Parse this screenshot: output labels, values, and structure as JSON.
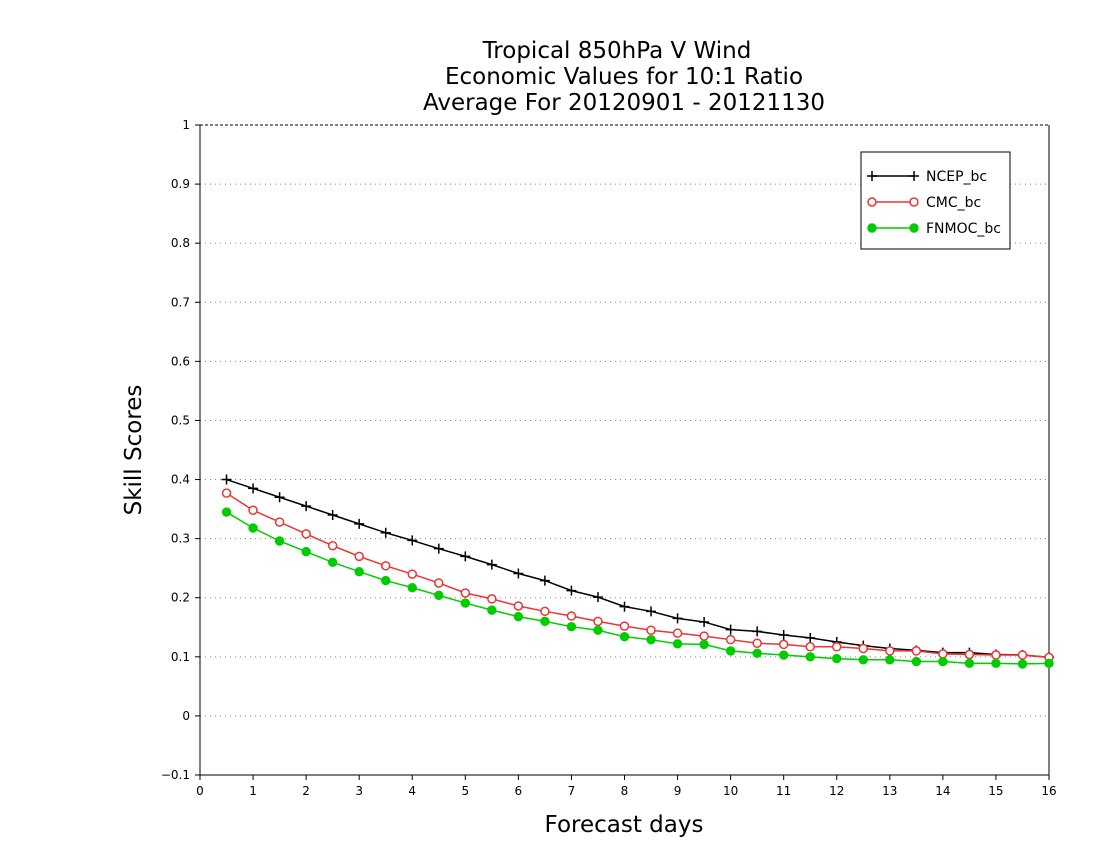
{
  "chart_data": {
    "type": "line",
    "title_lines": [
      "Tropical 850hPa V Wind",
      "Economic Values for 10:1 Ratio",
      "Average For 20120901 - 20121130"
    ],
    "xlabel": "Forecast days",
    "ylabel": "Skill Scores",
    "xlim": [
      0,
      16
    ],
    "ylim": [
      -0.1,
      1
    ],
    "xticks": [
      "0",
      "1",
      "2",
      "3",
      "4",
      "5",
      "6",
      "7",
      "8",
      "9",
      "10",
      "11",
      "12",
      "13",
      "14",
      "15",
      "16"
    ],
    "yticks": [
      "−0.1",
      "0",
      "0.1",
      "0.2",
      "0.3",
      "0.4",
      "0.5",
      "0.6",
      "0.7",
      "0.8",
      "0.9",
      "1"
    ],
    "grid": "horizontal-dotted",
    "legend_position": "top-right",
    "x": [
      0.5,
      1,
      1.5,
      2,
      2.5,
      3,
      3.5,
      4,
      4.5,
      5,
      5.5,
      6,
      6.5,
      7,
      7.5,
      8,
      8.5,
      9,
      9.5,
      10,
      10.5,
      11,
      11.5,
      12,
      12.5,
      13,
      13.5,
      14,
      14.5,
      15,
      15.5,
      16
    ],
    "series": [
      {
        "name": "NCEP_bc",
        "color": "#000000",
        "marker": "plus",
        "values": [
          0.4,
          0.385,
          0.37,
          0.355,
          0.34,
          0.325,
          0.31,
          0.297,
          0.283,
          0.27,
          0.256,
          0.241,
          0.229,
          0.212,
          0.201,
          0.185,
          0.177,
          0.165,
          0.159,
          0.146,
          0.143,
          0.137,
          0.132,
          0.125,
          0.119,
          0.114,
          0.111,
          0.107,
          0.107,
          0.104,
          0.103,
          0.099
        ]
      },
      {
        "name": "CMC_bc",
        "color": "#ee3333",
        "marker": "open-circle",
        "values": [
          0.377,
          0.348,
          0.328,
          0.308,
          0.288,
          0.27,
          0.254,
          0.24,
          0.225,
          0.208,
          0.198,
          0.186,
          0.177,
          0.169,
          0.16,
          0.152,
          0.145,
          0.14,
          0.135,
          0.129,
          0.123,
          0.121,
          0.117,
          0.117,
          0.114,
          0.11,
          0.11,
          0.105,
          0.104,
          0.103,
          0.103,
          0.099
        ]
      },
      {
        "name": "FNMOC_bc",
        "color": "#00cc00",
        "marker": "filled-circle",
        "values": [
          0.345,
          0.318,
          0.296,
          0.278,
          0.26,
          0.244,
          0.229,
          0.217,
          0.204,
          0.191,
          0.179,
          0.168,
          0.16,
          0.151,
          0.145,
          0.134,
          0.129,
          0.122,
          0.121,
          0.11,
          0.106,
          0.103,
          0.1,
          0.097,
          0.095,
          0.095,
          0.092,
          0.092,
          0.089,
          0.089,
          0.088,
          0.089
        ]
      }
    ]
  }
}
